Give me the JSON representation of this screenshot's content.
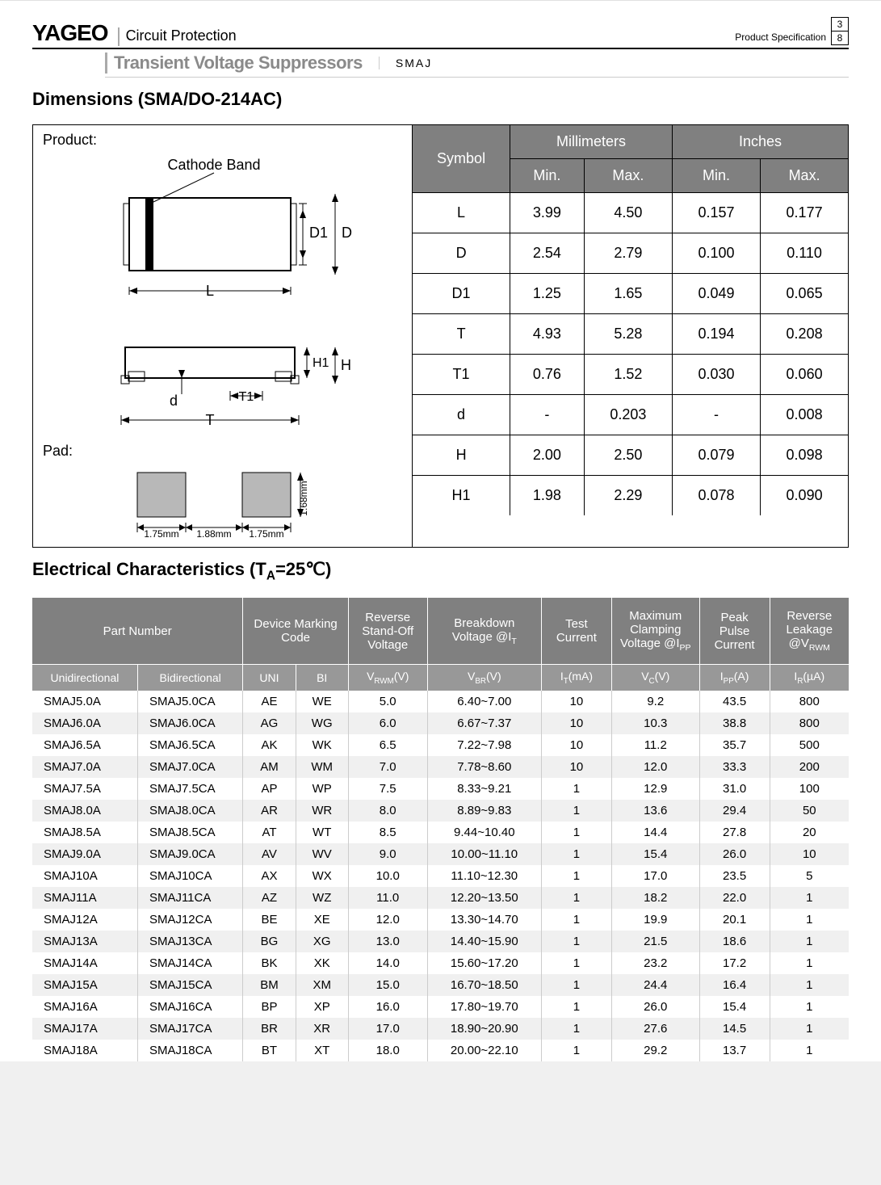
{
  "header": {
    "logo": "YAGEO",
    "category": "Circuit Protection",
    "product_spec_label": "Product Specification",
    "page_num": "3",
    "page_total": "8",
    "subtitle": "Transient Voltage Suppressors",
    "series": "SMAJ"
  },
  "dimensions": {
    "title": "Dimensions (SMA/DO-214AC)",
    "product_label": "Product:",
    "pad_label": "Pad:",
    "diagram": {
      "cathode_band_label": "Cathode Band",
      "labels": {
        "L": "L",
        "D": "D",
        "D1": "D1",
        "T": "T",
        "T1": "T1",
        "H": "H",
        "H1": "H1",
        "d": "d"
      },
      "pad_dims": {
        "w1": "1.75mm",
        "gap": "1.88mm",
        "w2": "1.75mm",
        "h": "1.68mm"
      }
    },
    "table": {
      "headers": {
        "symbol": "Symbol",
        "mm": "Millimeters",
        "in": "Inches",
        "min": "Min.",
        "max": "Max."
      },
      "rows": [
        {
          "sym": "L",
          "mm_min": "3.99",
          "mm_max": "4.50",
          "in_min": "0.157",
          "in_max": "0.177"
        },
        {
          "sym": "D",
          "mm_min": "2.54",
          "mm_max": "2.79",
          "in_min": "0.100",
          "in_max": "0.110"
        },
        {
          "sym": "D1",
          "mm_min": "1.25",
          "mm_max": "1.65",
          "in_min": "0.049",
          "in_max": "0.065"
        },
        {
          "sym": "T",
          "mm_min": "4.93",
          "mm_max": "5.28",
          "in_min": "0.194",
          "in_max": "0.208"
        },
        {
          "sym": "T1",
          "mm_min": "0.76",
          "mm_max": "1.52",
          "in_min": "0.030",
          "in_max": "0.060"
        },
        {
          "sym": "d",
          "mm_min": "-",
          "mm_max": "0.203",
          "in_min": "-",
          "in_max": "0.008"
        },
        {
          "sym": "H",
          "mm_min": "2.00",
          "mm_max": "2.50",
          "in_min": "0.079",
          "in_max": "0.098"
        },
        {
          "sym": "H1",
          "mm_min": "1.98",
          "mm_max": "2.29",
          "in_min": "0.078",
          "in_max": "0.090"
        }
      ]
    }
  },
  "electrical": {
    "title_prefix": "Electrical Characteristics (T",
    "title_sub": "A",
    "title_suffix": "=25℃)",
    "headers": {
      "part_number": "Part Number",
      "device_marking": "Device Marking Code",
      "reverse_standoff": "Reverse Stand-Off Voltage",
      "breakdown": "Breakdown Voltage @I",
      "breakdown_sub": "T",
      "test_current": "Test Current",
      "max_clamp": "Maximum Clamping Voltage @I",
      "max_clamp_sub": "PP",
      "peak_pulse": "Peak Pulse Current",
      "reverse_leak": "Reverse Leakage @V",
      "reverse_leak_sub": "RWM"
    },
    "subheaders": {
      "uni": "Unidirectional",
      "bi": "Bidirectional",
      "uni_code": "UNI",
      "bi_code": "BI",
      "vrwm": "V",
      "vrwm_sub": "RWM",
      "vrwm_unit": "(V)",
      "vbr": "V",
      "vbr_sub": "BR",
      "vbr_unit": "(V)",
      "it": "I",
      "it_sub": "T",
      "it_unit": "(mA)",
      "vc": "V",
      "vc_sub": "C",
      "vc_unit": "(V)",
      "ipp": "I",
      "ipp_sub": "PP",
      "ipp_unit": "(A)",
      "ir": "I",
      "ir_sub": "R",
      "ir_unit": "(µA)"
    },
    "rows": [
      {
        "uni": "SMAJ5.0A",
        "bi": "SMAJ5.0CA",
        "u": "AE",
        "b": "WE",
        "vrwm": "5.0",
        "vbr": "6.40~7.00",
        "it": "10",
        "vc": "9.2",
        "ipp": "43.5",
        "ir": "800"
      },
      {
        "uni": "SMAJ6.0A",
        "bi": "SMAJ6.0CA",
        "u": "AG",
        "b": "WG",
        "vrwm": "6.0",
        "vbr": "6.67~7.37",
        "it": "10",
        "vc": "10.3",
        "ipp": "38.8",
        "ir": "800"
      },
      {
        "uni": "SMAJ6.5A",
        "bi": "SMAJ6.5CA",
        "u": "AK",
        "b": "WK",
        "vrwm": "6.5",
        "vbr": "7.22~7.98",
        "it": "10",
        "vc": "11.2",
        "ipp": "35.7",
        "ir": "500"
      },
      {
        "uni": "SMAJ7.0A",
        "bi": "SMAJ7.0CA",
        "u": "AM",
        "b": "WM",
        "vrwm": "7.0",
        "vbr": "7.78~8.60",
        "it": "10",
        "vc": "12.0",
        "ipp": "33.3",
        "ir": "200"
      },
      {
        "uni": "SMAJ7.5A",
        "bi": "SMAJ7.5CA",
        "u": "AP",
        "b": "WP",
        "vrwm": "7.5",
        "vbr": "8.33~9.21",
        "it": "1",
        "vc": "12.9",
        "ipp": "31.0",
        "ir": "100"
      },
      {
        "uni": "SMAJ8.0A",
        "bi": "SMAJ8.0CA",
        "u": "AR",
        "b": "WR",
        "vrwm": "8.0",
        "vbr": "8.89~9.83",
        "it": "1",
        "vc": "13.6",
        "ipp": "29.4",
        "ir": "50"
      },
      {
        "uni": "SMAJ8.5A",
        "bi": "SMAJ8.5CA",
        "u": "AT",
        "b": "WT",
        "vrwm": "8.5",
        "vbr": "9.44~10.40",
        "it": "1",
        "vc": "14.4",
        "ipp": "27.8",
        "ir": "20"
      },
      {
        "uni": "SMAJ9.0A",
        "bi": "SMAJ9.0CA",
        "u": "AV",
        "b": "WV",
        "vrwm": "9.0",
        "vbr": "10.00~11.10",
        "it": "1",
        "vc": "15.4",
        "ipp": "26.0",
        "ir": "10"
      },
      {
        "uni": "SMAJ10A",
        "bi": "SMAJ10CA",
        "u": "AX",
        "b": "WX",
        "vrwm": "10.0",
        "vbr": "11.10~12.30",
        "it": "1",
        "vc": "17.0",
        "ipp": "23.5",
        "ir": "5"
      },
      {
        "uni": "SMAJ11A",
        "bi": "SMAJ11CA",
        "u": "AZ",
        "b": "WZ",
        "vrwm": "11.0",
        "vbr": "12.20~13.50",
        "it": "1",
        "vc": "18.2",
        "ipp": "22.0",
        "ir": "1"
      },
      {
        "uni": "SMAJ12A",
        "bi": "SMAJ12CA",
        "u": "BE",
        "b": "XE",
        "vrwm": "12.0",
        "vbr": "13.30~14.70",
        "it": "1",
        "vc": "19.9",
        "ipp": "20.1",
        "ir": "1"
      },
      {
        "uni": "SMAJ13A",
        "bi": "SMAJ13CA",
        "u": "BG",
        "b": "XG",
        "vrwm": "13.0",
        "vbr": "14.40~15.90",
        "it": "1",
        "vc": "21.5",
        "ipp": "18.6",
        "ir": "1"
      },
      {
        "uni": "SMAJ14A",
        "bi": "SMAJ14CA",
        "u": "BK",
        "b": "XK",
        "vrwm": "14.0",
        "vbr": "15.60~17.20",
        "it": "1",
        "vc": "23.2",
        "ipp": "17.2",
        "ir": "1"
      },
      {
        "uni": "SMAJ15A",
        "bi": "SMAJ15CA",
        "u": "BM",
        "b": "XM",
        "vrwm": "15.0",
        "vbr": "16.70~18.50",
        "it": "1",
        "vc": "24.4",
        "ipp": "16.4",
        "ir": "1"
      },
      {
        "uni": "SMAJ16A",
        "bi": "SMAJ16CA",
        "u": "BP",
        "b": "XP",
        "vrwm": "16.0",
        "vbr": "17.80~19.70",
        "it": "1",
        "vc": "26.0",
        "ipp": "15.4",
        "ir": "1"
      },
      {
        "uni": "SMAJ17A",
        "bi": "SMAJ17CA",
        "u": "BR",
        "b": "XR",
        "vrwm": "17.0",
        "vbr": "18.90~20.90",
        "it": "1",
        "vc": "27.6",
        "ipp": "14.5",
        "ir": "1"
      },
      {
        "uni": "SMAJ18A",
        "bi": "SMAJ18CA",
        "u": "BT",
        "b": "XT",
        "vrwm": "18.0",
        "vbr": "20.00~22.10",
        "it": "1",
        "vc": "29.2",
        "ipp": "13.7",
        "ir": "1"
      }
    ]
  },
  "colors": {
    "header_bg": "#808080",
    "subheader_bg": "#989898",
    "row_alt_bg": "#f0f0f0",
    "diagram_fill": "#b8b8b8"
  }
}
